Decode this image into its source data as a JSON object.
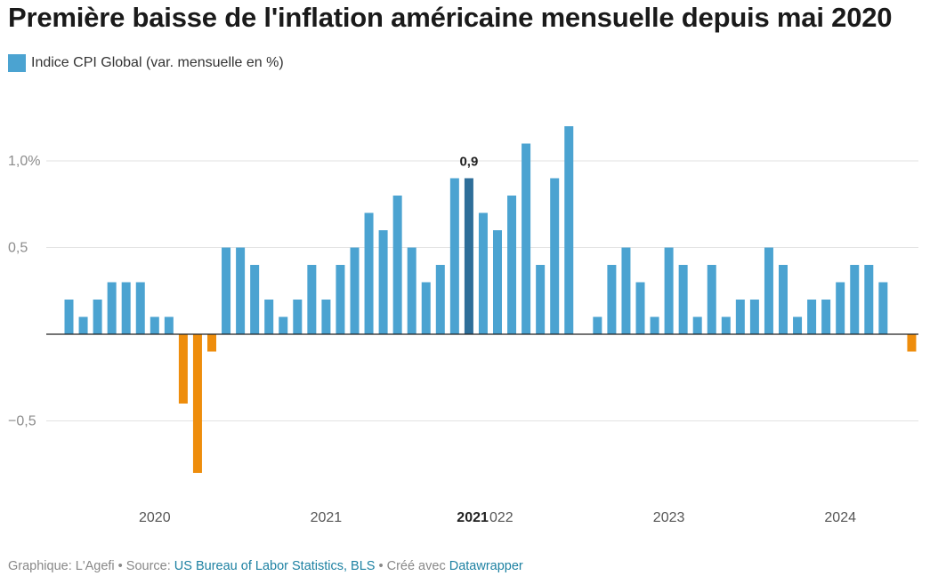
{
  "title": "Première baisse de l'inflation américaine mensuelle depuis mai 2020",
  "legend": {
    "label": "Indice CPI Global (var. mensuelle en %)"
  },
  "footer": {
    "prefix": "Graphique: L'Agefi • Source: ",
    "source_link": "US Bureau of Labor Statistics, BLS",
    "middle": " • Créé avec ",
    "tool_link": "Datawrapper"
  },
  "colors": {
    "positive": "#4ba3d1",
    "highlight": "#2e6e99",
    "negative": "#ee8d0c",
    "grid": "#e2e2e2",
    "axis": "#222222",
    "tick_text": "#8c8c8c"
  },
  "chart_data": {
    "type": "bar",
    "ylim": [
      -0.85,
      1.3
    ],
    "y_ticks": [
      {
        "value": 1.0,
        "label": "1,0%"
      },
      {
        "value": 0.5,
        "label": "0,5"
      },
      {
        "value": -0.5,
        "label": "−0,5"
      }
    ],
    "x_tick_labels": [
      {
        "label": "2020",
        "at_index": 6,
        "bold": false
      },
      {
        "label": "2021",
        "at_index": 18,
        "bold": false
      },
      {
        "label": "2021",
        "at_index": 28,
        "bold": true
      },
      {
        "label": "022",
        "at_index": 30,
        "bold": false
      },
      {
        "label": "2023",
        "at_index": 42,
        "bold": false
      },
      {
        "label": "2024",
        "at_index": 54,
        "bold": false
      }
    ],
    "values": [
      0.2,
      0.1,
      0.2,
      0.3,
      0.3,
      0.3,
      0.1,
      0.1,
      -0.4,
      -0.8,
      -0.1,
      0.5,
      0.5,
      0.4,
      0.2,
      0.1,
      0.2,
      0.4,
      0.2,
      0.4,
      0.5,
      0.7,
      0.6,
      0.8,
      0.5,
      0.3,
      0.4,
      0.9,
      0.9,
      0.7,
      0.6,
      0.8,
      1.1,
      0.4,
      0.9,
      1.2,
      0.0,
      0.1,
      0.4,
      0.5,
      0.3,
      0.1,
      0.5,
      0.4,
      0.1,
      0.4,
      0.1,
      0.2,
      0.2,
      0.5,
      0.4,
      0.1,
      0.2,
      0.2,
      0.3,
      0.4,
      0.4,
      0.3,
      0.0,
      -0.1
    ],
    "highlight_index": 28,
    "highlight_label": "0,9"
  }
}
